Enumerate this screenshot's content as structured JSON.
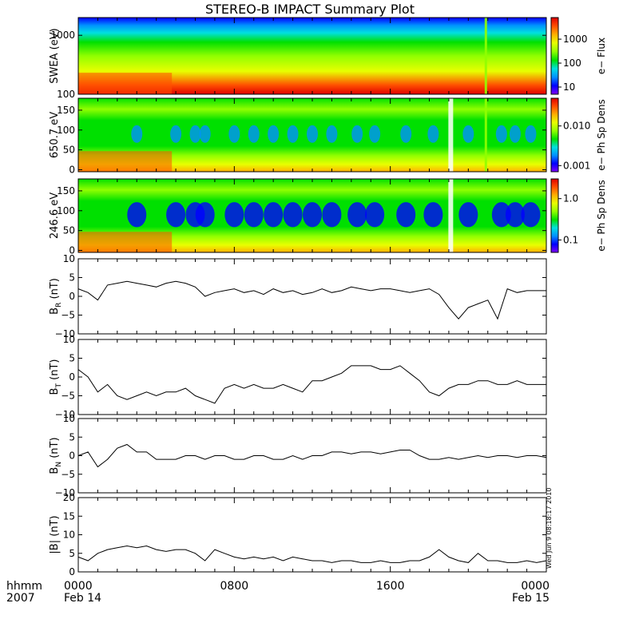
{
  "title": "STEREO-B IMPACT Summary Plot",
  "time_axis": {
    "row_label_1": "hhmm",
    "row_label_2": "2007",
    "ticks": [
      {
        "hour": 0,
        "label": "0000",
        "date": "Feb 14"
      },
      {
        "hour": 8,
        "label": "0800",
        "date": ""
      },
      {
        "hour": 16,
        "label": "1600",
        "date": ""
      },
      {
        "hour": 24,
        "label": "0000",
        "date": "Feb 15"
      }
    ]
  },
  "timestamp": "Wed Jun  9 08:18:17 2010",
  "colors": {
    "colormap": [
      "#7f00ff",
      "#0000ff",
      "#0090ff",
      "#00e0e0",
      "#00e000",
      "#90ff00",
      "#e8ff00",
      "#ffb000",
      "#ff5000",
      "#e00000"
    ],
    "line": "#000000",
    "axis": "#000000"
  },
  "chart_data": [
    {
      "type": "heatmap",
      "ylabel": "SWEA (eV)",
      "yscale": "log",
      "ylim": [
        100,
        2000
      ],
      "yticks": [
        {
          "value": 100,
          "label": "100"
        },
        {
          "value": 1000,
          "label": "1000"
        }
      ],
      "colorbar": {
        "label": "e− Flux",
        "scale": "log",
        "range": [
          5,
          8000
        ],
        "ticks": [
          {
            "value": 10,
            "label": "10"
          },
          {
            "value": 100,
            "label": "100"
          },
          {
            "value": 1000,
            "label": "1000"
          }
        ]
      },
      "gaps_hours": [],
      "spikes_hours": [
        20.9
      ]
    },
    {
      "type": "heatmap",
      "ylabel": "650.7 eV",
      "yscale": "linear",
      "ylim": [
        -5,
        180
      ],
      "yticks": [
        {
          "value": 0,
          "label": "0"
        },
        {
          "value": 50,
          "label": "50"
        },
        {
          "value": 100,
          "label": "100"
        },
        {
          "value": 150,
          "label": "150"
        }
      ],
      "colorbar": {
        "label": "e− Ph Sp Dens",
        "scale": "log",
        "range": [
          0.0007,
          0.05
        ],
        "ticks": [
          {
            "value": 0.001,
            "label": "0.001"
          },
          {
            "value": 0.01,
            "label": "0.010"
          }
        ]
      },
      "gaps_hours": [
        19.1
      ],
      "spikes_hours": [
        20.9
      ]
    },
    {
      "type": "heatmap",
      "ylabel": "246.6 eV",
      "yscale": "linear",
      "ylim": [
        -5,
        180
      ],
      "yticks": [
        {
          "value": 0,
          "label": "0"
        },
        {
          "value": 50,
          "label": "50"
        },
        {
          "value": 100,
          "label": "100"
        },
        {
          "value": 150,
          "label": "150"
        }
      ],
      "colorbar": {
        "label": "e− Ph Sp Dens",
        "scale": "log",
        "range": [
          0.05,
          3
        ],
        "ticks": [
          {
            "value": 0.1,
            "label": "0.1"
          },
          {
            "value": 1.0,
            "label": "1.0"
          }
        ]
      },
      "gaps_hours": [
        19.1
      ],
      "spikes_hours": []
    },
    {
      "type": "line",
      "ylabel": "B",
      "ylabel_sub": "R",
      "ylabel_unit": " (nT)",
      "ylim": [
        -10,
        10
      ],
      "yticks": [
        {
          "value": -10,
          "label": "−10"
        },
        {
          "value": -5,
          "label": "−5"
        },
        {
          "value": 0,
          "label": "0"
        },
        {
          "value": 5,
          "label": "5"
        },
        {
          "value": 10,
          "label": "10"
        }
      ],
      "x": [
        0,
        0.5,
        1,
        1.5,
        2,
        2.5,
        3,
        3.5,
        4,
        4.5,
        5,
        5.5,
        6,
        6.5,
        7,
        7.5,
        8,
        8.5,
        9,
        9.5,
        10,
        10.5,
        11,
        11.5,
        12,
        12.5,
        13,
        13.5,
        14,
        14.5,
        15,
        15.5,
        16,
        16.5,
        17,
        17.5,
        18,
        18.5,
        19,
        19.5,
        20,
        20.5,
        21,
        21.5,
        22,
        22.5,
        23,
        23.5,
        24
      ],
      "y": [
        2,
        1,
        -1,
        3,
        3.5,
        4,
        3.5,
        3,
        2.5,
        3.5,
        4,
        3.5,
        2.5,
        0,
        1,
        1.5,
        2,
        1,
        1.5,
        0.5,
        2,
        1,
        1.5,
        0.5,
        1,
        2,
        1,
        1.5,
        2.5,
        2,
        1.5,
        2,
        2,
        1.5,
        1,
        1.5,
        2,
        0.5,
        -3,
        -6,
        -3,
        -2,
        -1,
        -6,
        2,
        1,
        1.5,
        1.5,
        1.5
      ]
    },
    {
      "type": "line",
      "ylabel": "B",
      "ylabel_sub": "T",
      "ylabel_unit": " (nT)",
      "ylim": [
        -10,
        10
      ],
      "yticks": [
        {
          "value": -10,
          "label": "−10"
        },
        {
          "value": -5,
          "label": "−5"
        },
        {
          "value": 0,
          "label": "0"
        },
        {
          "value": 5,
          "label": "5"
        },
        {
          "value": 10,
          "label": "10"
        }
      ],
      "x": [
        0,
        0.5,
        1,
        1.5,
        2,
        2.5,
        3,
        3.5,
        4,
        4.5,
        5,
        5.5,
        6,
        6.5,
        7,
        7.5,
        8,
        8.5,
        9,
        9.5,
        10,
        10.5,
        11,
        11.5,
        12,
        12.5,
        13,
        13.5,
        14,
        14.5,
        15,
        15.5,
        16,
        16.5,
        17,
        17.5,
        18,
        18.5,
        19,
        19.5,
        20,
        20.5,
        21,
        21.5,
        22,
        22.5,
        23,
        23.5,
        24
      ],
      "y": [
        2,
        0,
        -4,
        -2,
        -5,
        -6,
        -5,
        -4,
        -5,
        -4,
        -4,
        -3,
        -5,
        -6,
        -7,
        -3,
        -2,
        -3,
        -2,
        -3,
        -3,
        -2,
        -3,
        -4,
        -1,
        -1,
        0,
        1,
        3,
        3,
        3,
        2,
        2,
        3,
        1,
        -1,
        -4,
        -5,
        -3,
        -2,
        -2,
        -1,
        -1,
        -2,
        -2,
        -1,
        -2,
        -2,
        -2
      ]
    },
    {
      "type": "line",
      "ylabel": "B",
      "ylabel_sub": "N",
      "ylabel_unit": " (nT)",
      "ylim": [
        -10,
        10
      ],
      "yticks": [
        {
          "value": -10,
          "label": "−10"
        },
        {
          "value": -5,
          "label": "−5"
        },
        {
          "value": 0,
          "label": "0"
        },
        {
          "value": 5,
          "label": "5"
        },
        {
          "value": 10,
          "label": "10"
        }
      ],
      "x": [
        0,
        0.5,
        1,
        1.5,
        2,
        2.5,
        3,
        3.5,
        4,
        4.5,
        5,
        5.5,
        6,
        6.5,
        7,
        7.5,
        8,
        8.5,
        9,
        9.5,
        10,
        10.5,
        11,
        11.5,
        12,
        12.5,
        13,
        13.5,
        14,
        14.5,
        15,
        15.5,
        16,
        16.5,
        17,
        17.5,
        18,
        18.5,
        19,
        19.5,
        20,
        20.5,
        21,
        21.5,
        22,
        22.5,
        23,
        23.5,
        24
      ],
      "y": [
        0,
        1,
        -3,
        -1,
        2,
        3,
        1,
        1,
        -1,
        -1,
        -1,
        0,
        0,
        -1,
        0,
        0,
        -1,
        -1,
        0,
        0,
        -1,
        -1,
        0,
        -1,
        0,
        0,
        1,
        1,
        0.5,
        1,
        1,
        0.5,
        1,
        1.5,
        1.5,
        0,
        -1,
        -1,
        -0.5,
        -1,
        -0.5,
        0,
        -0.5,
        0,
        0,
        -0.5,
        0,
        0,
        -0.5
      ]
    },
    {
      "type": "line",
      "ylabel": "|B|",
      "ylabel_sub": "",
      "ylabel_unit": " (nT)",
      "ylim": [
        0,
        20
      ],
      "yticks": [
        {
          "value": 0,
          "label": "0"
        },
        {
          "value": 5,
          "label": "5"
        },
        {
          "value": 10,
          "label": "10"
        },
        {
          "value": 15,
          "label": "15"
        },
        {
          "value": 20,
          "label": "20"
        }
      ],
      "x": [
        0,
        0.5,
        1,
        1.5,
        2,
        2.5,
        3,
        3.5,
        4,
        4.5,
        5,
        5.5,
        6,
        6.5,
        7,
        7.5,
        8,
        8.5,
        9,
        9.5,
        10,
        10.5,
        11,
        11.5,
        12,
        12.5,
        13,
        13.5,
        14,
        14.5,
        15,
        15.5,
        16,
        16.5,
        17,
        17.5,
        18,
        18.5,
        19,
        19.5,
        20,
        20.5,
        21,
        21.5,
        22,
        22.5,
        23,
        23.5,
        24
      ],
      "y": [
        4,
        3,
        5,
        6,
        6.5,
        7,
        6.5,
        7,
        6,
        5.5,
        6,
        6,
        5,
        3,
        6,
        5,
        4,
        3.5,
        4,
        3.5,
        4,
        3,
        4,
        3.5,
        3,
        3,
        2.5,
        3,
        3,
        2.5,
        2.5,
        3,
        2.5,
        2.5,
        3,
        3,
        4,
        6,
        4,
        3,
        2.5,
        5,
        3,
        3,
        2.5,
        2.5,
        3,
        2.5,
        3
      ]
    }
  ]
}
